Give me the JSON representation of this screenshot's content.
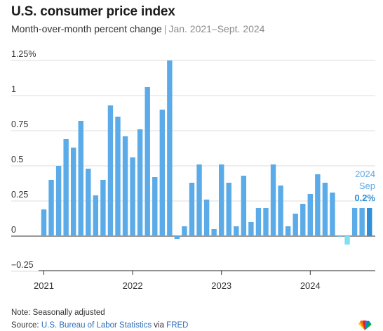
{
  "header": {
    "title": "U.S. consumer price index",
    "subtitle_main": "Month-over-month percent change",
    "subtitle_sep": "|",
    "subtitle_range": "Jan. 2021–Sept. 2024"
  },
  "footer": {
    "note": "Note: Seasonally adjusted",
    "source_prefix": "Source: ",
    "source_org": "U.S. Bureau of Labor Statistics",
    "source_mid": " via ",
    "source_db": "FRED"
  },
  "colors": {
    "bar": "#5aabe8",
    "latest_bar": "#2f8fd8",
    "negative_bar": "#7fe0f2",
    "grid": "#dcdcdc",
    "axis_text": "#333333",
    "annotation_text": "#5aabe8",
    "annotation_value": "#2f8fd8"
  },
  "chart_data": {
    "type": "bar",
    "y_ticks": [
      {
        "value": 1.25,
        "label": "1.25%"
      },
      {
        "value": 1,
        "label": "1"
      },
      {
        "value": 0.75,
        "label": "0.75"
      },
      {
        "value": 0.5,
        "label": "0.5"
      },
      {
        "value": 0.25,
        "label": "0.25"
      },
      {
        "value": 0,
        "label": "0"
      },
      {
        "value": -0.25,
        "label": "−0.25"
      }
    ],
    "ylim": [
      -0.3,
      1.3
    ],
    "x_ticks": [
      {
        "year": 2021,
        "label": "2021"
      },
      {
        "year": 2022,
        "label": "2022"
      },
      {
        "year": 2023,
        "label": "2023"
      },
      {
        "year": 2024,
        "label": "2024"
      }
    ],
    "start": {
      "year": 2021,
      "month": 1
    },
    "values": [
      0.19,
      0.4,
      0.5,
      0.69,
      0.63,
      0.82,
      0.48,
      0.29,
      0.4,
      0.93,
      0.85,
      0.71,
      0.56,
      0.76,
      1.06,
      0.42,
      0.9,
      1.25,
      -0.02,
      0.07,
      0.38,
      0.51,
      0.26,
      0.05,
      0.51,
      0.38,
      0.07,
      0.43,
      0.1,
      0.2,
      0.2,
      0.51,
      0.36,
      0.07,
      0.16,
      0.23,
      0.3,
      0.44,
      0.38,
      0.31,
      0.0,
      -0.06,
      0.2,
      0.2,
      0.2
    ],
    "annotation": {
      "year_label": "2024",
      "month_label": "Sep",
      "value_label": "0.2%"
    }
  }
}
